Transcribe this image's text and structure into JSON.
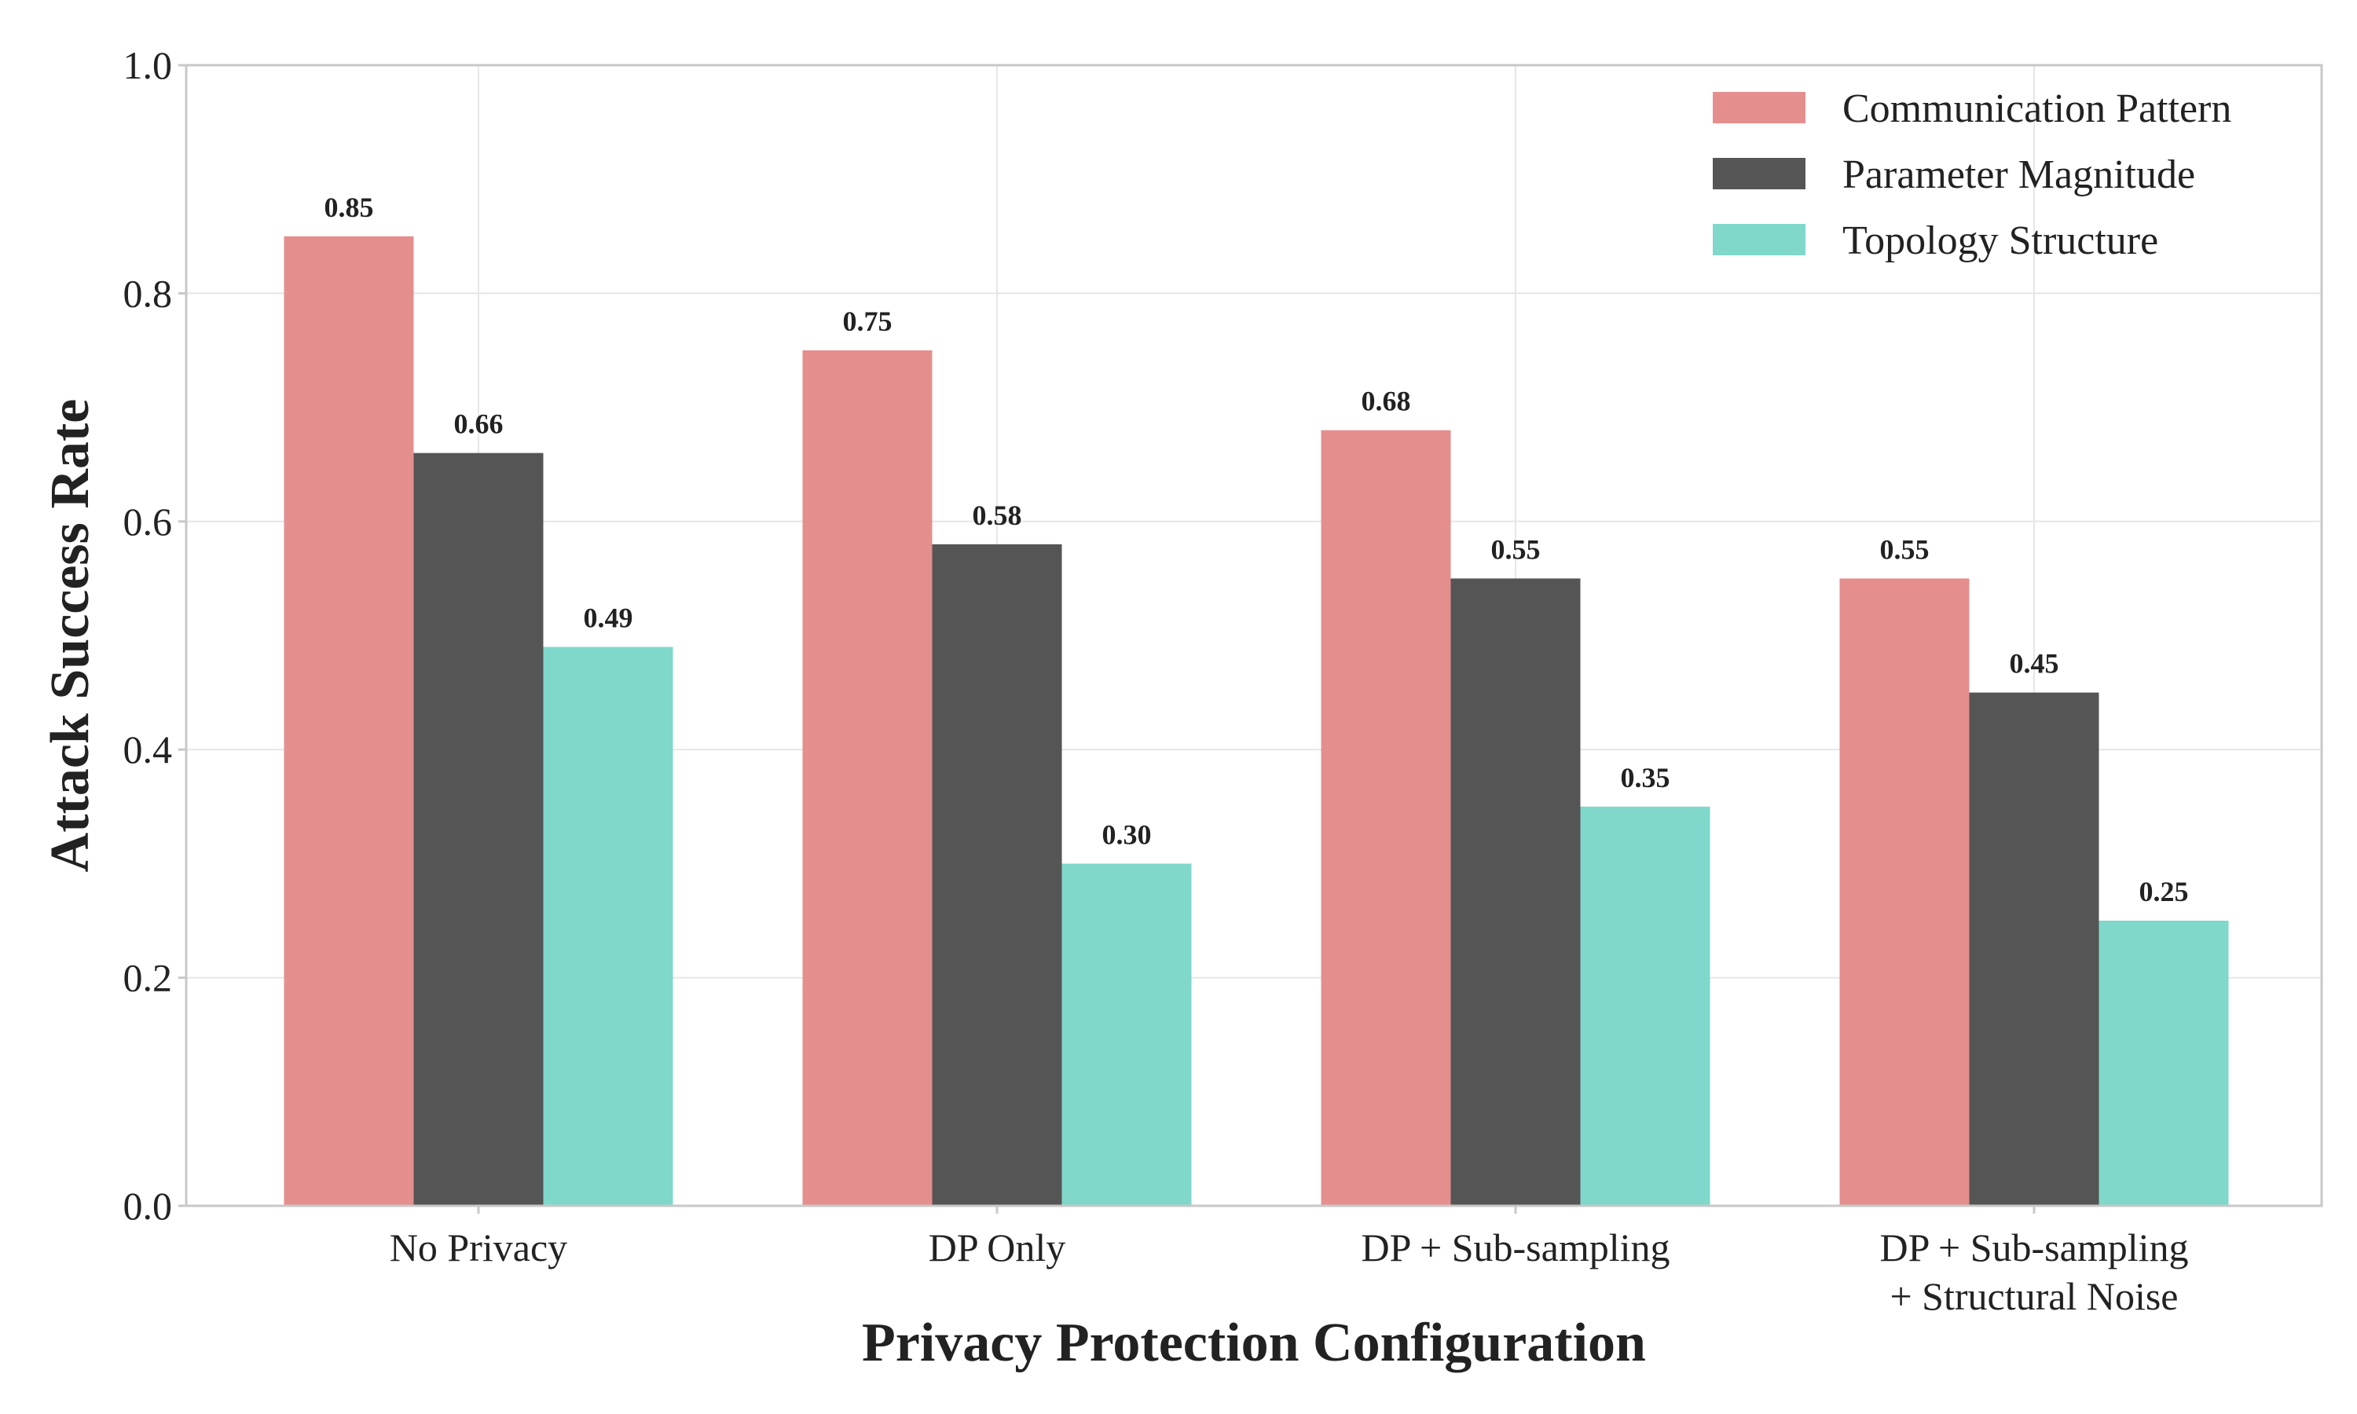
{
  "chart_data": {
    "type": "bar",
    "categories": [
      "No Privacy",
      "DP Only",
      "DP + Sub-sampling",
      "DP + Sub-sampling\n+ Structural Noise"
    ],
    "series": [
      {
        "name": "Communication Pattern",
        "color": "#e58e8e",
        "values": [
          0.85,
          0.75,
          0.68,
          0.55
        ]
      },
      {
        "name": "Parameter Magnitude",
        "color": "#555555",
        "values": [
          0.66,
          0.58,
          0.55,
          0.45
        ]
      },
      {
        "name": "Topology Structure",
        "color": "#7fd8ca",
        "values": [
          0.49,
          0.3,
          0.35,
          0.25
        ]
      }
    ],
    "value_labels": [
      [
        "0.85",
        "0.75",
        "0.68",
        "0.55"
      ],
      [
        "0.66",
        "0.58",
        "0.55",
        "0.45"
      ],
      [
        "0.49",
        "0.30",
        "0.35",
        "0.25"
      ]
    ],
    "xlabel": "Privacy Protection Configuration",
    "ylabel": "Attack Success Rate",
    "ylim": [
      0,
      1.0
    ],
    "yticks": [
      0.0,
      0.2,
      0.4,
      0.6,
      0.8,
      1.0
    ],
    "ytick_labels": [
      "0.0",
      "0.2",
      "0.4",
      "0.6",
      "0.8",
      "1.0"
    ],
    "grid": true,
    "legend_position": "top-right"
  }
}
